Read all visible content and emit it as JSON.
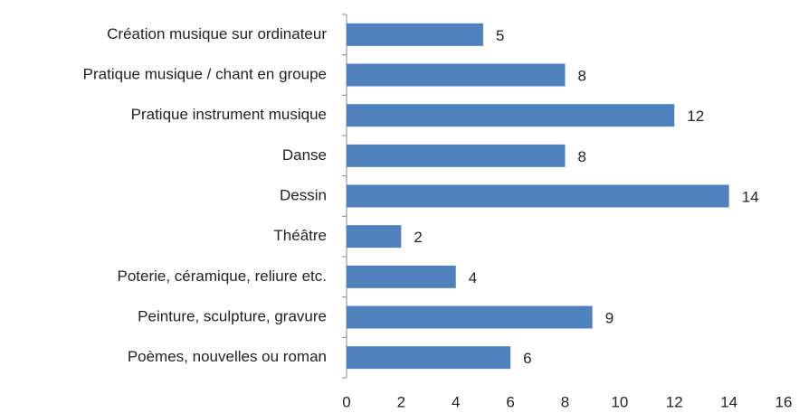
{
  "chart_data": {
    "type": "bar",
    "orientation": "horizontal",
    "categories": [
      "Création musique sur ordinateur",
      "Pratique musique / chant en groupe",
      "Pratique instrument musique",
      "Danse",
      "Dessin",
      "Théâtre",
      "Poterie, céramique, reliure etc.",
      "Peinture, sculpture, gravure",
      "Poèmes, nouvelles ou roman"
    ],
    "values": [
      5,
      8,
      12,
      8,
      14,
      2,
      4,
      9,
      6
    ],
    "color": "#4f81bd",
    "xlim": [
      0,
      16
    ],
    "xticks": [
      0,
      2,
      4,
      6,
      8,
      10,
      12,
      14,
      16
    ],
    "grid": false
  }
}
